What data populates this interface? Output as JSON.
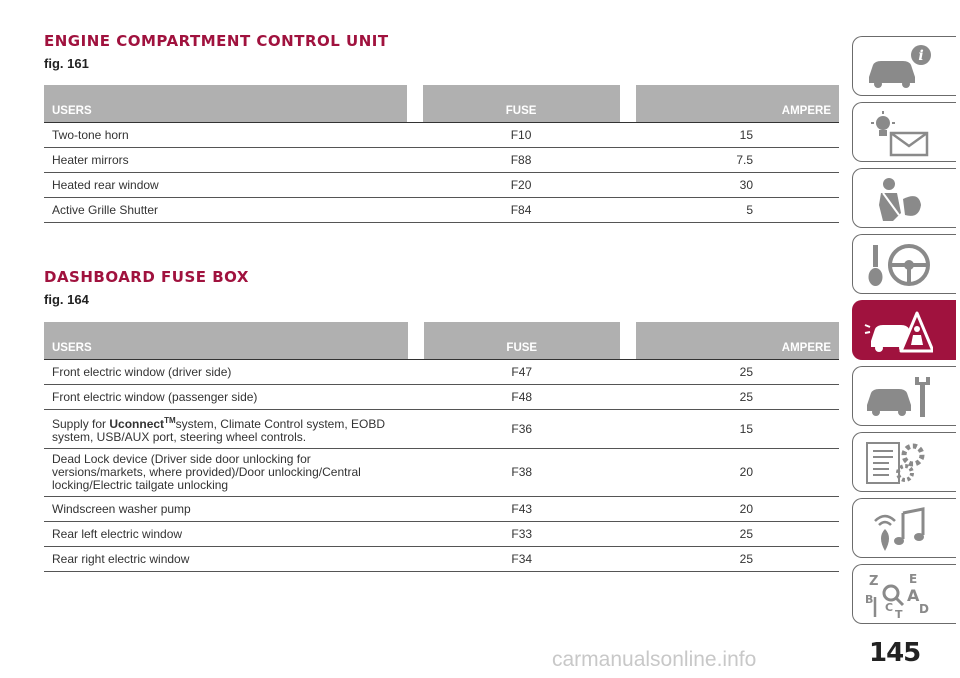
{
  "sections": [
    {
      "title": "ENGINE COMPARTMENT CONTROL UNIT",
      "fig": "fig. 161",
      "headers": {
        "users": "USERS",
        "fuse": "FUSE",
        "ampere": "AMPERE"
      },
      "rows": [
        {
          "users": "Two-tone horn",
          "fuse": "F10",
          "ampere": "15"
        },
        {
          "users": "Heater mirrors",
          "fuse": "F88",
          "ampere": "7.5"
        },
        {
          "users": "Heated rear window",
          "fuse": "F20",
          "ampere": "30"
        },
        {
          "users": "Active Grille Shutter",
          "fuse": "F84",
          "ampere": "5"
        }
      ]
    },
    {
      "title": "DASHBOARD FUSE BOX",
      "fig": "fig. 164",
      "headers": {
        "users": "USERS",
        "fuse": "FUSE",
        "ampere": "AMPERE"
      },
      "rows": [
        {
          "users": "Front electric window (driver side)",
          "fuse": "F47",
          "ampere": "25"
        },
        {
          "users": "Front electric window (passenger side)",
          "fuse": "F48",
          "ampere": "25"
        },
        {
          "users_prefix": "Supply for ",
          "users_bold": "Uconnect",
          "users_sup": "TM",
          "users_suffix": "system, Climate Control system, EOBD system, USB/AUX port, steering wheel controls.",
          "fuse": "F36",
          "ampere": "15"
        },
        {
          "users": "Dead Lock device (Driver side door unlocking for versions/markets, where provided)/Door unlocking/Central locking/Electric tailgate unlocking",
          "fuse": "F38",
          "ampere": "20"
        },
        {
          "users": "Windscreen washer pump",
          "fuse": "F43",
          "ampere": "20"
        },
        {
          "users": "Rear left electric window",
          "fuse": "F33",
          "ampere": "25"
        },
        {
          "users": "Rear right electric window",
          "fuse": "F34",
          "ampere": "25"
        }
      ]
    }
  ],
  "side_tabs": [
    {
      "icon": "car-info-icon",
      "active": false
    },
    {
      "icon": "warning-lights-message-icon",
      "active": false
    },
    {
      "icon": "seatbelt-airbag-icon",
      "active": false
    },
    {
      "icon": "key-steering-wheel-icon",
      "active": false
    },
    {
      "icon": "car-breakdown-warning-triangle-icon",
      "active": true
    },
    {
      "icon": "car-maintenance-wrench-icon",
      "active": false
    },
    {
      "icon": "technical-data-gears-icon",
      "active": false
    },
    {
      "icon": "multimedia-music-icon",
      "active": false
    },
    {
      "icon": "alphabetical-index-icon",
      "active": false,
      "letters": [
        "Z",
        "E",
        "A",
        "B",
        "C",
        "D",
        "T"
      ]
    }
  ],
  "page_number": "145",
  "watermark": "carmanualsonline.info",
  "colors": {
    "accent": "#a0123e",
    "header_bg": "#b0b0b0"
  }
}
